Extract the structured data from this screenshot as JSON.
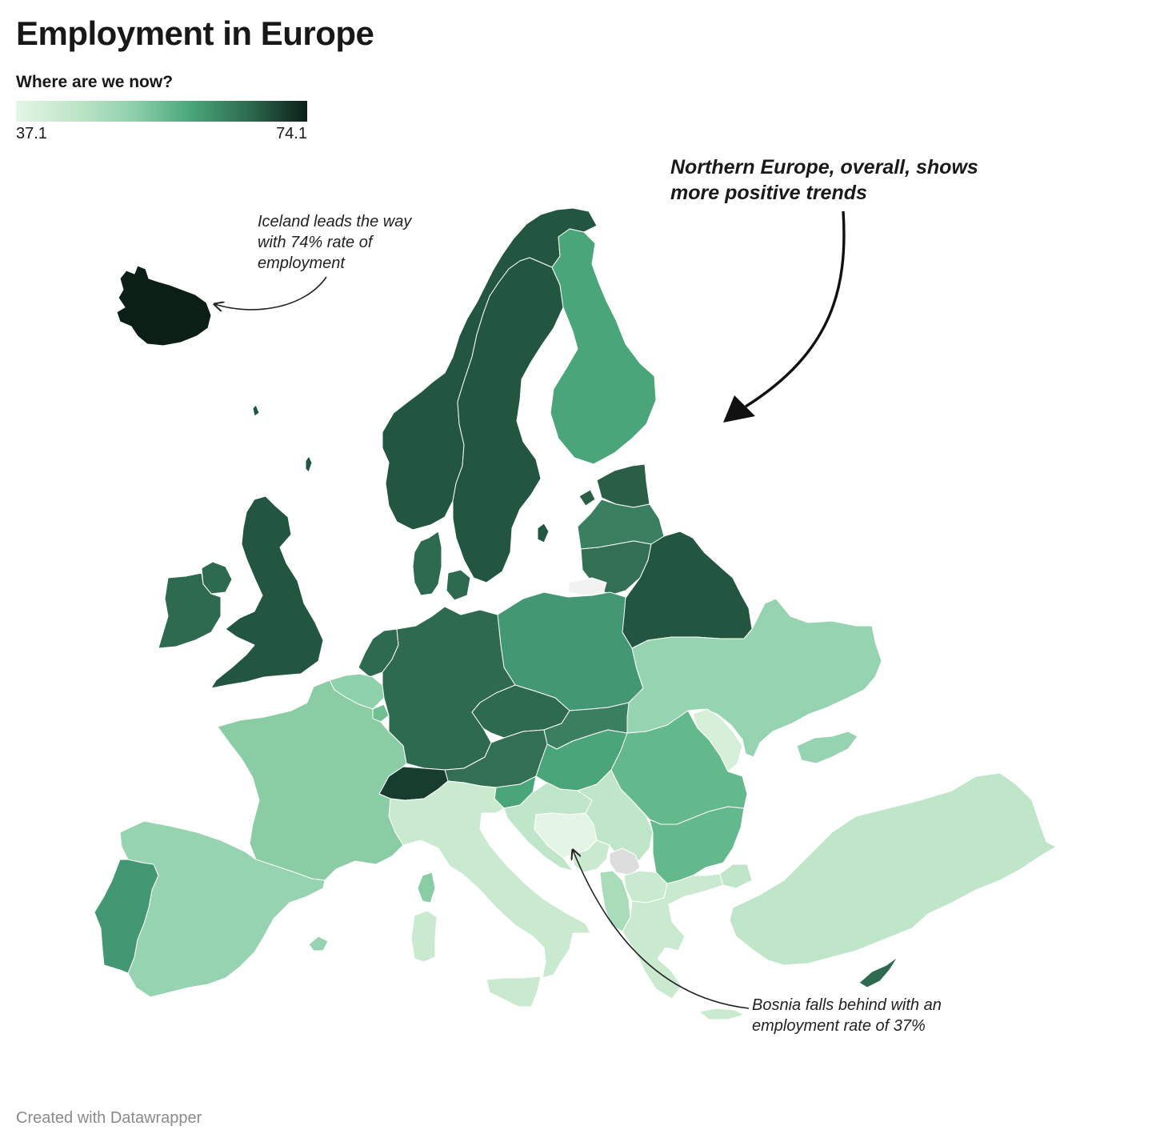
{
  "header": {
    "title": "Employment in Europe",
    "subtitle": "Where are we now?"
  },
  "legend": {
    "min_label": "37.1",
    "max_label": "74.1",
    "min": 37.1,
    "max": 74.1,
    "colors": [
      "#e4f5e6",
      "#bfe6c8",
      "#8fd1ab",
      "#4aa67a",
      "#2d6a4f",
      "#0b1f18"
    ]
  },
  "map": {
    "no_data_color": "#dddddd",
    "country_fills": {
      "iceland": "#0c1f17",
      "norway": "#235641",
      "sweden": "#235641",
      "finland": "#4aa67a",
      "estonia": "#2a5e47",
      "latvia": "#3a8060",
      "lithuania": "#336f55",
      "belarus": "#235641",
      "united-kingdom": "#235641",
      "ireland": "#2d6a4f",
      "northern-ireland": "#2d6a4f",
      "denmark": "#2d6a4f",
      "netherlands": "#2d6a4f",
      "belgium": "#8fd1ab",
      "luxembourg": "#6fbf93",
      "germany": "#2d6a4f",
      "poland": "#449773",
      "czechia": "#2d6a4f",
      "slovakia": "#3a8060",
      "austria": "#336f55",
      "switzerland": "#173d2e",
      "hungary": "#4aa67a",
      "slovenia": "#4aa67a",
      "croatia": "#bfe6c8",
      "bosnia": "#e4f5e6",
      "serbia": "#bfe6c8",
      "montenegro": "#c9eacf",
      "kosovo": "#dddddd",
      "albania": "#a9dcb9",
      "north-macedonia": "#c9eacf",
      "bulgaria": "#63b98c",
      "romania": "#63b98c",
      "moldova": "#d6efd9",
      "ukraine": "#96d3b0",
      "greece": "#c9eacf",
      "turkey": "#bfe6c8",
      "cyprus": "#2d6a4f",
      "italy": "#c9eacf",
      "france": "#8acda4",
      "spain": "#96d3b0",
      "portugal": "#449773",
      "kaliningrad": "#f2f2f2"
    }
  },
  "annotations": {
    "iceland": "Iceland leads the way with 74% rate of employment",
    "north": "Northern Europe, overall, shows more positive trends",
    "bosnia": "Bosnia falls behind with an employment rate of 37%"
  },
  "footer": {
    "credit": "Created with Datawrapper"
  }
}
